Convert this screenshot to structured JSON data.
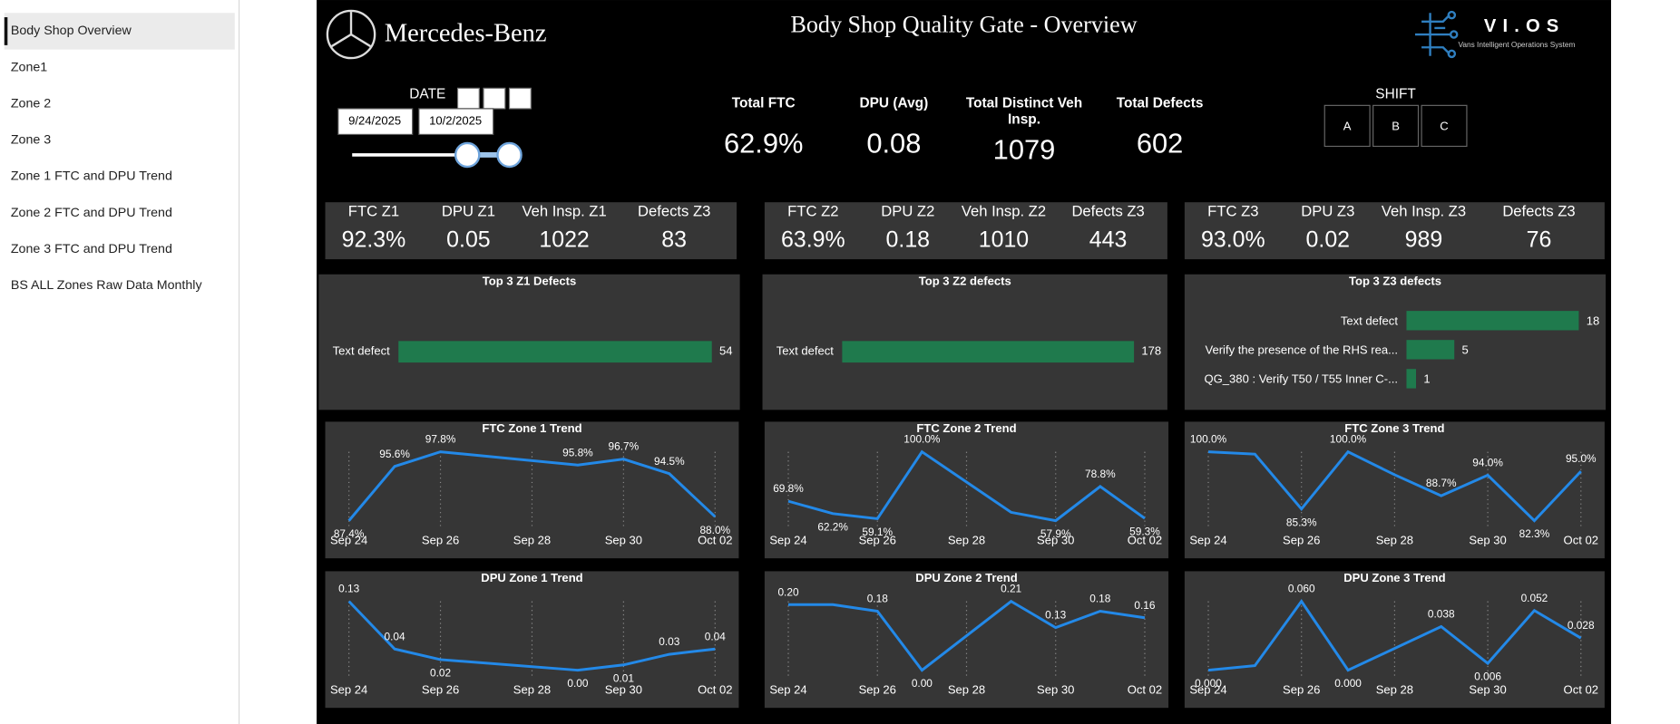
{
  "nav": {
    "items": [
      "Body Shop Overview",
      "Zone1",
      "Zone 2",
      "Zone 3",
      "Zone 1 FTC and DPU Trend",
      "Zone 2 FTC and DPU Trend",
      "Zone 3 FTC and DPU Trend",
      "BS ALL Zones Raw Data Monthly"
    ]
  },
  "header": {
    "brand": "Mercedes-Benz",
    "title": "Body Shop Quality Gate - Overview",
    "logo": "VI.OS",
    "logo_subtitle": "Vans Intelligent Operations System"
  },
  "filters": {
    "date_label": "DATE",
    "start_date": "9/24/2025",
    "end_date": "10/2/2025",
    "shift_label": "SHIFT",
    "shifts": [
      "A",
      "B",
      "C"
    ]
  },
  "kpis": [
    {
      "label": "Total FTC",
      "value": "62.9%"
    },
    {
      "label": "DPU (Avg)",
      "value": "0.08"
    },
    {
      "label": "Total Distinct Veh Insp.",
      "value": "1079"
    },
    {
      "label": "Total Defects",
      "value": "602"
    }
  ],
  "zones": [
    {
      "items": [
        {
          "label": "FTC Z1",
          "value": "92.3%"
        },
        {
          "label": "DPU Z1",
          "value": "0.05"
        },
        {
          "label": "Veh Insp. Z1",
          "value": "1022"
        },
        {
          "label": "Defects Z3",
          "value": "83"
        }
      ]
    },
    {
      "items": [
        {
          "label": "FTC Z2",
          "value": "63.9%"
        },
        {
          "label": "DPU Z2",
          "value": "0.18"
        },
        {
          "label": "Veh Insp. Z2",
          "value": "1010"
        },
        {
          "label": "Defects Z3",
          "value": "443"
        }
      ]
    },
    {
      "items": [
        {
          "label": "FTC Z3",
          "value": "93.0%"
        },
        {
          "label": "DPU Z3",
          "value": "0.02"
        },
        {
          "label": "Veh Insp. Z3",
          "value": "989"
        },
        {
          "label": "Defects Z3",
          "value": "76"
        }
      ]
    }
  ],
  "chart_data": [
    {
      "type": "bar",
      "title": "Top 3 Z1 Defects",
      "categories": [
        "Text defect"
      ],
      "values": [
        54
      ],
      "color": "#1f7a4d"
    },
    {
      "type": "bar",
      "title": "Top 3 Z2 defects",
      "categories": [
        "Text defect"
      ],
      "values": [
        178
      ],
      "color": "#1f7a4d"
    },
    {
      "type": "bar",
      "title": "Top 3 Z3 defects",
      "categories": [
        "Text defect",
        "Verify the presence of the RHS rea...",
        "QG_380 : Verify T50 / T55 Inner C-..."
      ],
      "values": [
        18,
        5,
        1
      ],
      "color": "#1f7a4d"
    },
    {
      "type": "line",
      "title": "FTC Zone 1 Trend",
      "x": [
        "Sep 24",
        "Sep 25",
        "Sep 26",
        "Sep 29",
        "Sep 30",
        "Oct 01",
        "Oct 02"
      ],
      "values": [
        87.4,
        95.6,
        97.8,
        95.8,
        96.7,
        94.5,
        88.0
      ],
      "value_labels": [
        "87.4%",
        "95.6%",
        "97.8%",
        "95.8%",
        "96.7%",
        "94.5%",
        "88.0%"
      ],
      "xticks": [
        "Sep 24",
        "Sep 26",
        "Sep 28",
        "Sep 30",
        "Oct 02"
      ],
      "color": "#2389e8"
    },
    {
      "type": "line",
      "title": "FTC Zone 2 Trend",
      "x": [
        "Sep 24",
        "Sep 25",
        "Sep 26",
        "Sep 27",
        "Sep 29",
        "Sep 30",
        "Oct 01",
        "Oct 02"
      ],
      "values": [
        69.8,
        62.2,
        59.1,
        100.0,
        63.0,
        57.9,
        78.8,
        59.3
      ],
      "value_labels": [
        "69.8%",
        "62.2%",
        "59.1%",
        "100.0%",
        null,
        "57.9%",
        "78.8%",
        "59.3%"
      ],
      "xticks": [
        "Sep 24",
        "Sep 26",
        "Sep 28",
        "Sep 30",
        "Oct 02"
      ],
      "color": "#2389e8"
    },
    {
      "type": "line",
      "title": "FTC Zone 3 Trend",
      "x": [
        "Sep 24",
        "Sep 25",
        "Sep 26",
        "Sep 27",
        "Sep 28",
        "Sep 29",
        "Sep 30",
        "Oct 01",
        "Oct 02"
      ],
      "values": [
        100.0,
        99.4,
        85.3,
        100.0,
        94.1,
        88.7,
        94.0,
        82.3,
        95.0
      ],
      "value_labels": [
        "100.0%",
        null,
        "85.3%",
        "100.0%",
        null,
        "88.7%",
        "94.0%",
        "82.3%",
        "95.0%"
      ],
      "xticks": [
        "Sep 24",
        "Sep 26",
        "Sep 28",
        "Sep 30",
        "Oct 02"
      ],
      "color": "#2389e8"
    },
    {
      "type": "line",
      "title": "DPU Zone 1 Trend",
      "x": [
        "Sep 24",
        "Sep 25",
        "Sep 26",
        "Sep 29",
        "Sep 30",
        "Oct 01",
        "Oct 02"
      ],
      "values": [
        0.13,
        0.04,
        0.02,
        0.0,
        0.01,
        0.03,
        0.04
      ],
      "value_labels": [
        "0.13",
        "0.04",
        "0.02",
        "0.00",
        "0.01",
        "0.03",
        "0.04"
      ],
      "xticks": [
        "Sep 24",
        "Sep 26",
        "Sep 28",
        "Sep 30",
        "Oct 02"
      ],
      "color": "#2389e8"
    },
    {
      "type": "line",
      "title": "DPU Zone 2 Trend",
      "x": [
        "Sep 24",
        "Sep 25",
        "Sep 26",
        "Sep 27",
        "Sep 29",
        "Sep 30",
        "Oct 01",
        "Oct 02"
      ],
      "values": [
        0.2,
        0.2,
        0.18,
        0.0,
        0.21,
        0.13,
        0.18,
        0.16
      ],
      "value_labels": [
        "0.20",
        null,
        "0.18",
        "0.00",
        "0.21",
        "0.13",
        "0.18",
        "0.16"
      ],
      "xticks": [
        "Sep 24",
        "Sep 26",
        "Sep 28",
        "Sep 30",
        "Oct 02"
      ],
      "color": "#2389e8"
    },
    {
      "type": "line",
      "title": "DPU Zone 3 Trend",
      "x": [
        "Sep 24",
        "Sep 25",
        "Sep 26",
        "Sep 27",
        "Sep 29",
        "Sep 30",
        "Oct 01",
        "Oct 02"
      ],
      "values": [
        0.0,
        0.004,
        0.06,
        0.0,
        0.038,
        0.006,
        0.052,
        0.028
      ],
      "value_labels": [
        "0.000",
        null,
        "0.060",
        "0.000",
        "0.038",
        "0.006",
        "0.052",
        "0.028"
      ],
      "xticks": [
        "Sep 24",
        "Sep 26",
        "Sep 28",
        "Sep 30",
        "Oct 02"
      ],
      "color": "#2389e8"
    }
  ]
}
